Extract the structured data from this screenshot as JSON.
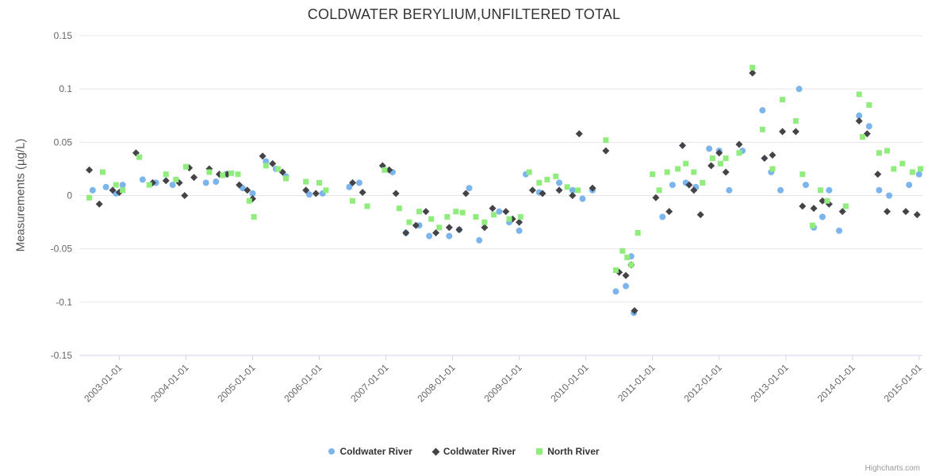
{
  "credits": "Highcharts.com",
  "chart_data": {
    "type": "scatter",
    "title": "COLDWATER BERYLIUM,UNFILTERED TOTAL",
    "xlabel": "",
    "ylabel": "Measurements (µg/L)",
    "ylim": [
      -0.15,
      0.15
    ],
    "y_ticks": [
      0.15,
      0.1,
      0.05,
      0,
      -0.05,
      -0.1,
      -0.15
    ],
    "xlim_years": [
      2002.4,
      2015.05
    ],
    "x_tick_labels": [
      "2003-01-01",
      "2004-01-01",
      "2005-01-01",
      "2006-01-01",
      "2007-01-01",
      "2008-01-01",
      "2009-01-01",
      "2010-01-01",
      "2011-01-01",
      "2012-01-01",
      "2013-01-01",
      "2014-01-01",
      "2015-01-01"
    ],
    "grid": true,
    "legend_position": "bottom",
    "grid_color": "#e6e6e6",
    "axis_line_color": "#ccd6eb",
    "tick_label_color": "#666666",
    "series": [
      {
        "name": "Coldwater River",
        "marker": "circle",
        "color": "#7cb5ec",
        "points": [
          [
            2002.6,
            0.005
          ],
          [
            2002.8,
            0.008
          ],
          [
            2002.95,
            0.002
          ],
          [
            2003.05,
            0.01
          ],
          [
            2003.35,
            0.015
          ],
          [
            2003.55,
            0.012
          ],
          [
            2003.8,
            0.01
          ],
          [
            2004.3,
            0.012
          ],
          [
            2004.45,
            0.013
          ],
          [
            2004.6,
            0.02
          ],
          [
            2004.85,
            0.007
          ],
          [
            2005.0,
            0.002
          ],
          [
            2005.2,
            0.032
          ],
          [
            2005.35,
            0.025
          ],
          [
            2005.5,
            0.018
          ],
          [
            2005.85,
            0.001
          ],
          [
            2006.05,
            0.002
          ],
          [
            2006.45,
            0.008
          ],
          [
            2006.6,
            0.012
          ],
          [
            2007.1,
            0.022
          ],
          [
            2007.3,
            -0.035
          ],
          [
            2007.5,
            -0.028
          ],
          [
            2007.65,
            -0.038
          ],
          [
            2007.95,
            -0.038
          ],
          [
            2008.1,
            -0.032
          ],
          [
            2008.25,
            0.007
          ],
          [
            2008.4,
            -0.042
          ],
          [
            2008.7,
            -0.015
          ],
          [
            2008.85,
            -0.025
          ],
          [
            2009.0,
            -0.033
          ],
          [
            2009.1,
            0.02
          ],
          [
            2009.3,
            0.003
          ],
          [
            2009.6,
            0.012
          ],
          [
            2009.8,
            0.005
          ],
          [
            2009.95,
            -0.003
          ],
          [
            2010.1,
            0.005
          ],
          [
            2010.45,
            -0.09
          ],
          [
            2010.6,
            -0.085
          ],
          [
            2010.68,
            -0.057
          ],
          [
            2010.72,
            -0.11
          ],
          [
            2011.15,
            -0.02
          ],
          [
            2011.3,
            0.01
          ],
          [
            2011.5,
            0.012
          ],
          [
            2011.65,
            0.008
          ],
          [
            2011.85,
            0.044
          ],
          [
            2012.0,
            0.042
          ],
          [
            2012.15,
            0.005
          ],
          [
            2012.35,
            0.042
          ],
          [
            2012.65,
            0.08
          ],
          [
            2012.78,
            0.022
          ],
          [
            2012.92,
            0.005
          ],
          [
            2013.2,
            0.1
          ],
          [
            2013.3,
            0.01
          ],
          [
            2013.42,
            -0.03
          ],
          [
            2013.55,
            -0.02
          ],
          [
            2013.65,
            0.005
          ],
          [
            2013.8,
            -0.033
          ],
          [
            2014.1,
            0.075
          ],
          [
            2014.25,
            0.065
          ],
          [
            2014.4,
            0.005
          ],
          [
            2014.55,
            0.0
          ],
          [
            2014.85,
            0.01
          ],
          [
            2015.0,
            0.02
          ]
        ]
      },
      {
        "name": "Coldwater River",
        "marker": "diamond",
        "color": "#434348",
        "points": [
          [
            2002.55,
            0.024
          ],
          [
            2002.7,
            -0.008
          ],
          [
            2002.9,
            0.005
          ],
          [
            2003.0,
            0.003
          ],
          [
            2003.25,
            0.04
          ],
          [
            2003.5,
            0.012
          ],
          [
            2003.7,
            0.014
          ],
          [
            2003.9,
            0.012
          ],
          [
            2003.98,
            0.0
          ],
          [
            2004.05,
            0.026
          ],
          [
            2004.12,
            0.017
          ],
          [
            2004.35,
            0.025
          ],
          [
            2004.5,
            0.02
          ],
          [
            2004.62,
            0.02
          ],
          [
            2004.8,
            0.01
          ],
          [
            2004.92,
            0.005
          ],
          [
            2005.0,
            -0.003
          ],
          [
            2005.15,
            0.037
          ],
          [
            2005.3,
            0.03
          ],
          [
            2005.45,
            0.022
          ],
          [
            2005.8,
            0.005
          ],
          [
            2005.95,
            0.002
          ],
          [
            2006.5,
            0.012
          ],
          [
            2006.65,
            0.003
          ],
          [
            2006.95,
            0.028
          ],
          [
            2007.05,
            0.024
          ],
          [
            2007.15,
            0.002
          ],
          [
            2007.3,
            -0.035
          ],
          [
            2007.45,
            -0.028
          ],
          [
            2007.6,
            -0.015
          ],
          [
            2007.75,
            -0.035
          ],
          [
            2007.95,
            -0.03
          ],
          [
            2008.1,
            -0.032
          ],
          [
            2008.2,
            0.002
          ],
          [
            2008.48,
            -0.03
          ],
          [
            2008.6,
            -0.012
          ],
          [
            2008.8,
            -0.015
          ],
          [
            2008.9,
            -0.022
          ],
          [
            2009.0,
            -0.025
          ],
          [
            2009.2,
            0.005
          ],
          [
            2009.35,
            0.002
          ],
          [
            2009.6,
            0.005
          ],
          [
            2009.8,
            0.0
          ],
          [
            2009.9,
            0.058
          ],
          [
            2010.1,
            0.007
          ],
          [
            2010.3,
            0.042
          ],
          [
            2010.5,
            -0.072
          ],
          [
            2010.6,
            -0.075
          ],
          [
            2010.68,
            -0.065
          ],
          [
            2010.73,
            -0.108
          ],
          [
            2011.05,
            -0.002
          ],
          [
            2011.25,
            -0.015
          ],
          [
            2011.45,
            0.047
          ],
          [
            2011.55,
            0.01
          ],
          [
            2011.62,
            0.005
          ],
          [
            2011.72,
            -0.018
          ],
          [
            2011.88,
            0.028
          ],
          [
            2012.0,
            0.04
          ],
          [
            2012.1,
            0.022
          ],
          [
            2012.3,
            0.048
          ],
          [
            2012.5,
            0.115
          ],
          [
            2012.68,
            0.035
          ],
          [
            2012.8,
            0.038
          ],
          [
            2012.95,
            0.06
          ],
          [
            2013.15,
            0.06
          ],
          [
            2013.25,
            -0.01
          ],
          [
            2013.42,
            -0.012
          ],
          [
            2013.55,
            -0.005
          ],
          [
            2013.65,
            -0.008
          ],
          [
            2013.85,
            -0.015
          ],
          [
            2014.1,
            0.07
          ],
          [
            2014.22,
            0.058
          ],
          [
            2014.38,
            0.02
          ],
          [
            2014.52,
            -0.015
          ],
          [
            2014.8,
            -0.015
          ],
          [
            2014.97,
            -0.018
          ]
        ]
      },
      {
        "name": "North River",
        "marker": "square",
        "color": "#90ed7d",
        "points": [
          [
            2002.55,
            -0.002
          ],
          [
            2002.75,
            0.022
          ],
          [
            2002.95,
            0.01
          ],
          [
            2003.05,
            0.005
          ],
          [
            2003.3,
            0.036
          ],
          [
            2003.45,
            0.01
          ],
          [
            2003.7,
            0.02
          ],
          [
            2003.85,
            0.015
          ],
          [
            2004.0,
            0.027
          ],
          [
            2004.35,
            0.022
          ],
          [
            2004.55,
            0.019
          ],
          [
            2004.68,
            0.021
          ],
          [
            2004.78,
            0.02
          ],
          [
            2004.95,
            -0.005
          ],
          [
            2005.02,
            -0.02
          ],
          [
            2005.2,
            0.028
          ],
          [
            2005.38,
            0.025
          ],
          [
            2005.5,
            0.016
          ],
          [
            2005.8,
            0.013
          ],
          [
            2006.0,
            0.012
          ],
          [
            2006.1,
            0.005
          ],
          [
            2006.5,
            -0.005
          ],
          [
            2006.72,
            -0.01
          ],
          [
            2006.98,
            0.024
          ],
          [
            2007.2,
            -0.012
          ],
          [
            2007.35,
            -0.025
          ],
          [
            2007.5,
            -0.015
          ],
          [
            2007.68,
            -0.022
          ],
          [
            2007.8,
            -0.03
          ],
          [
            2007.92,
            -0.02
          ],
          [
            2008.05,
            -0.015
          ],
          [
            2008.15,
            -0.016
          ],
          [
            2008.35,
            -0.02
          ],
          [
            2008.48,
            -0.025
          ],
          [
            2008.62,
            -0.018
          ],
          [
            2008.85,
            -0.022
          ],
          [
            2009.02,
            -0.02
          ],
          [
            2009.15,
            0.022
          ],
          [
            2009.3,
            0.012
          ],
          [
            2009.42,
            0.015
          ],
          [
            2009.55,
            0.018
          ],
          [
            2009.72,
            0.008
          ],
          [
            2009.88,
            0.005
          ],
          [
            2010.3,
            0.052
          ],
          [
            2010.45,
            -0.07
          ],
          [
            2010.55,
            -0.052
          ],
          [
            2010.62,
            -0.058
          ],
          [
            2010.68,
            -0.065
          ],
          [
            2010.78,
            -0.035
          ],
          [
            2011.0,
            0.02
          ],
          [
            2011.1,
            0.005
          ],
          [
            2011.22,
            0.022
          ],
          [
            2011.38,
            0.025
          ],
          [
            2011.5,
            0.03
          ],
          [
            2011.62,
            0.022
          ],
          [
            2011.75,
            0.012
          ],
          [
            2011.9,
            0.035
          ],
          [
            2012.02,
            0.03
          ],
          [
            2012.1,
            0.035
          ],
          [
            2012.3,
            0.04
          ],
          [
            2012.5,
            0.12
          ],
          [
            2012.65,
            0.062
          ],
          [
            2012.8,
            0.025
          ],
          [
            2012.95,
            0.09
          ],
          [
            2013.15,
            0.07
          ],
          [
            2013.25,
            0.02
          ],
          [
            2013.4,
            -0.028
          ],
          [
            2013.52,
            0.005
          ],
          [
            2013.62,
            -0.005
          ],
          [
            2013.9,
            -0.01
          ],
          [
            2014.1,
            0.095
          ],
          [
            2014.15,
            0.055
          ],
          [
            2014.25,
            0.085
          ],
          [
            2014.4,
            0.04
          ],
          [
            2014.52,
            0.042
          ],
          [
            2014.62,
            0.025
          ],
          [
            2014.75,
            0.03
          ],
          [
            2014.9,
            0.022
          ],
          [
            2015.02,
            0.025
          ]
        ]
      }
    ]
  }
}
